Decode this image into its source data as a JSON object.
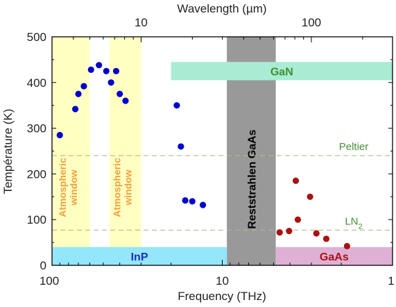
{
  "chart_data": {
    "type": "scatter",
    "xlabel": "Frequency (THz)",
    "ylabel": "Température (K)",
    "top_axis_label": "Wavelength (µm)",
    "x_scale": "log",
    "x_direction": "reversed",
    "xlim": [
      100,
      1
    ],
    "ylim": [
      0,
      500
    ],
    "x_ticks": [
      {
        "value": 100,
        "label": "100"
      },
      {
        "value": 10,
        "label": "10"
      },
      {
        "value": 1,
        "label": "1"
      }
    ],
    "y_ticks": [
      {
        "value": 0,
        "label": "0"
      },
      {
        "value": 100,
        "label": "100"
      },
      {
        "value": 200,
        "label": "200"
      },
      {
        "value": 300,
        "label": "300"
      },
      {
        "value": 400,
        "label": "400"
      },
      {
        "value": 500,
        "label": "500"
      }
    ],
    "top_ticks": [
      {
        "wavelength_um": 10,
        "label": "10"
      },
      {
        "wavelength_um": 100,
        "label": "100"
      }
    ],
    "grid": false,
    "series": [
      {
        "name": "InP",
        "color": "#0000cc",
        "x": [
          90,
          73,
          70,
          65,
          59,
          53,
          48,
          45,
          42,
          40,
          37,
          18.5,
          17.5,
          16.5,
          15,
          13
        ],
        "y": [
          285,
          342,
          375,
          392,
          428,
          438,
          425,
          400,
          425,
          375,
          360,
          350,
          260,
          142,
          140,
          132
        ]
      },
      {
        "name": "GaAs",
        "color": "#aa1111",
        "x": [
          4.6,
          4.05,
          3.7,
          3.6,
          3.05,
          2.8,
          2.45,
          1.85
        ],
        "y": [
          72,
          75,
          185,
          100,
          150,
          70,
          58,
          42
        ]
      }
    ],
    "regions": [
      {
        "label": "Atmospheric window",
        "x": [
          100,
          60
        ],
        "y": [
          0,
          500
        ],
        "color": "#ffffc2",
        "text_color": "#f0a040"
      },
      {
        "label": "Atmospheric window",
        "x": [
          46,
          30
        ],
        "y": [
          0,
          500
        ],
        "color": "#ffffc2",
        "text_color": "#f0a040"
      },
      {
        "label": "Reststrahlen GaAs",
        "x": [
          9.4,
          4.85
        ],
        "y": [
          0,
          500
        ],
        "color": "#999999",
        "text_color": "#000000"
      }
    ],
    "bands": [
      {
        "label": "InP",
        "x": [
          100,
          9.4
        ],
        "y": [
          0,
          40
        ],
        "color": "#94e6fa",
        "text_color": "#1a2fbf"
      },
      {
        "label": "GaN",
        "x": [
          20,
          1
        ],
        "y": [
          405,
          445
        ],
        "color": "#a8ecd4",
        "text_color": "#3f8f30"
      },
      {
        "label": "GaAs",
        "x": [
          4.85,
          1
        ],
        "y": [
          0,
          40
        ],
        "color": "#dfb0d6",
        "text_color": "#aa1111"
      }
    ],
    "reference_lines": [
      {
        "label": "Peltier",
        "y": 240,
        "color": "#bbb490",
        "text_color": "#4a8f3a"
      },
      {
        "label": "LN",
        "subscript": "2",
        "y": 77,
        "color": "#bbb490",
        "text_color": "#4a8f3a"
      }
    ]
  }
}
